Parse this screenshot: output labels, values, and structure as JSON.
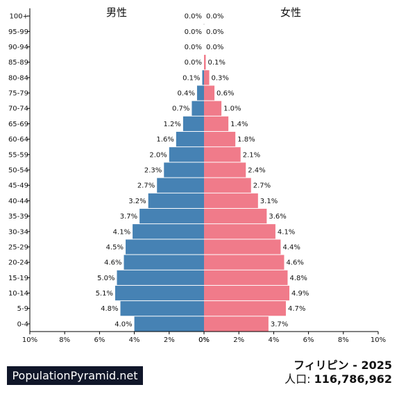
{
  "chart_data": {
    "type": "bar",
    "orientation": "horizontal-pyramid",
    "left_title": "男性",
    "right_title": "女性",
    "categories": [
      "100+",
      "95-99",
      "90-94",
      "85-89",
      "80-84",
      "75-79",
      "70-74",
      "65-69",
      "60-64",
      "55-59",
      "50-54",
      "45-49",
      "40-44",
      "35-39",
      "30-34",
      "25-29",
      "20-24",
      "15-19",
      "10-14",
      "5-9",
      "0-4"
    ],
    "series": [
      {
        "name": "男性",
        "color": "#4682b4",
        "values": [
          0.0,
          0.0,
          0.0,
          0.0,
          0.1,
          0.4,
          0.7,
          1.2,
          1.6,
          2.0,
          2.3,
          2.7,
          3.2,
          3.7,
          4.1,
          4.5,
          4.6,
          5.0,
          5.1,
          4.8,
          4.0
        ],
        "labels": [
          "0.0%",
          "0.0%",
          "0.0%",
          "0.0%",
          "0.1%",
          "0.4%",
          "0.7%",
          "1.2%",
          "1.6%",
          "2.0%",
          "2.3%",
          "2.7%",
          "3.2%",
          "3.7%",
          "4.1%",
          "4.5%",
          "4.6%",
          "5.0%",
          "5.1%",
          "4.8%",
          "4.0%"
        ]
      },
      {
        "name": "女性",
        "color": "#f07b8a",
        "values": [
          0.0,
          0.0,
          0.0,
          0.1,
          0.3,
          0.6,
          1.0,
          1.4,
          1.8,
          2.1,
          2.4,
          2.7,
          3.1,
          3.6,
          4.1,
          4.4,
          4.6,
          4.8,
          4.9,
          4.7,
          3.7
        ],
        "labels": [
          "0.0%",
          "0.0%",
          "0.0%",
          "0.1%",
          "0.3%",
          "0.6%",
          "1.0%",
          "1.4%",
          "1.8%",
          "2.1%",
          "2.4%",
          "2.7%",
          "3.1%",
          "3.6%",
          "4.1%",
          "4.4%",
          "4.6%",
          "4.8%",
          "4.9%",
          "4.7%",
          "3.7%"
        ]
      }
    ],
    "xlim": [
      0,
      10
    ],
    "x_ticks_left": [
      "10%",
      "8%",
      "6%",
      "4%",
      "2%",
      "0%"
    ],
    "x_ticks_right": [
      "0%",
      "2%",
      "4%",
      "6%",
      "8%",
      "10%"
    ],
    "grid": false
  },
  "footer": {
    "brand": "PopulationPyramid.net",
    "country_year": "フィリピン - 2025",
    "population_label": "人口: ",
    "population_value": "116,786,962"
  }
}
